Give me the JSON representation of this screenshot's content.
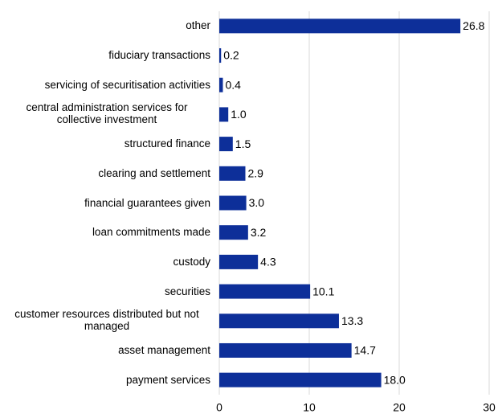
{
  "chart_data": {
    "type": "barh",
    "categories": [
      "other",
      "fiduciary transactions",
      "servicing of securitisation activities",
      "central administration services for collective investment",
      "structured finance",
      "clearing and settlement",
      "financial guarantees given",
      "loan commitments made",
      "custody",
      "securities",
      "customer resources distributed but not managed",
      "asset management",
      "payment services"
    ],
    "values": [
      26.8,
      0.2,
      0.4,
      1.0,
      1.5,
      2.9,
      3.0,
      3.2,
      4.3,
      10.1,
      13.3,
      14.7,
      18.0
    ],
    "value_labels": [
      "26.8",
      "0.2",
      "0.4",
      "1.0",
      "1.5",
      "2.9",
      "3.0",
      "3.2",
      "4.3",
      "10.1",
      "13.3",
      "14.7",
      "18.0"
    ],
    "color": "#0d2f99",
    "xlim": [
      0,
      30
    ],
    "xticks": [
      0,
      10,
      20,
      30
    ],
    "grid": true
  }
}
